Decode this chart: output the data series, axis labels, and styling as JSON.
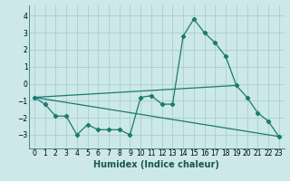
{
  "xlabel": "Humidex (Indice chaleur)",
  "x": [
    0,
    1,
    2,
    3,
    4,
    5,
    6,
    7,
    8,
    9,
    10,
    11,
    12,
    13,
    14,
    15,
    16,
    17,
    18,
    19,
    20,
    21,
    22,
    23
  ],
  "line1": [
    -0.8,
    -1.2,
    -1.9,
    -1.9,
    -3.0,
    -2.4,
    -2.7,
    -2.7,
    -2.7,
    -3.0,
    -0.8,
    -0.7,
    -1.2,
    -1.2,
    2.8,
    3.8,
    3.0,
    2.4,
    1.6,
    -0.1,
    -0.8,
    -1.7,
    -2.2,
    -3.1
  ],
  "line3_x": [
    0,
    23
  ],
  "line3_y": [
    -0.8,
    -3.1
  ],
  "line4_x": [
    0,
    19
  ],
  "line4_y": [
    -0.8,
    -0.1
  ],
  "bg_color": "#cce8e8",
  "line_color": "#1a7a6e",
  "grid_color": "#aacece",
  "ylim": [
    -3.8,
    4.6
  ],
  "xlim": [
    -0.5,
    23.5
  ],
  "yticks": [
    -3,
    -2,
    -1,
    0,
    1,
    2,
    3,
    4
  ],
  "xticks": [
    0,
    1,
    2,
    3,
    4,
    5,
    6,
    7,
    8,
    9,
    10,
    11,
    12,
    13,
    14,
    15,
    16,
    17,
    18,
    19,
    20,
    21,
    22,
    23
  ],
  "xlabel_fontsize": 7,
  "tick_fontsize": 5.5
}
